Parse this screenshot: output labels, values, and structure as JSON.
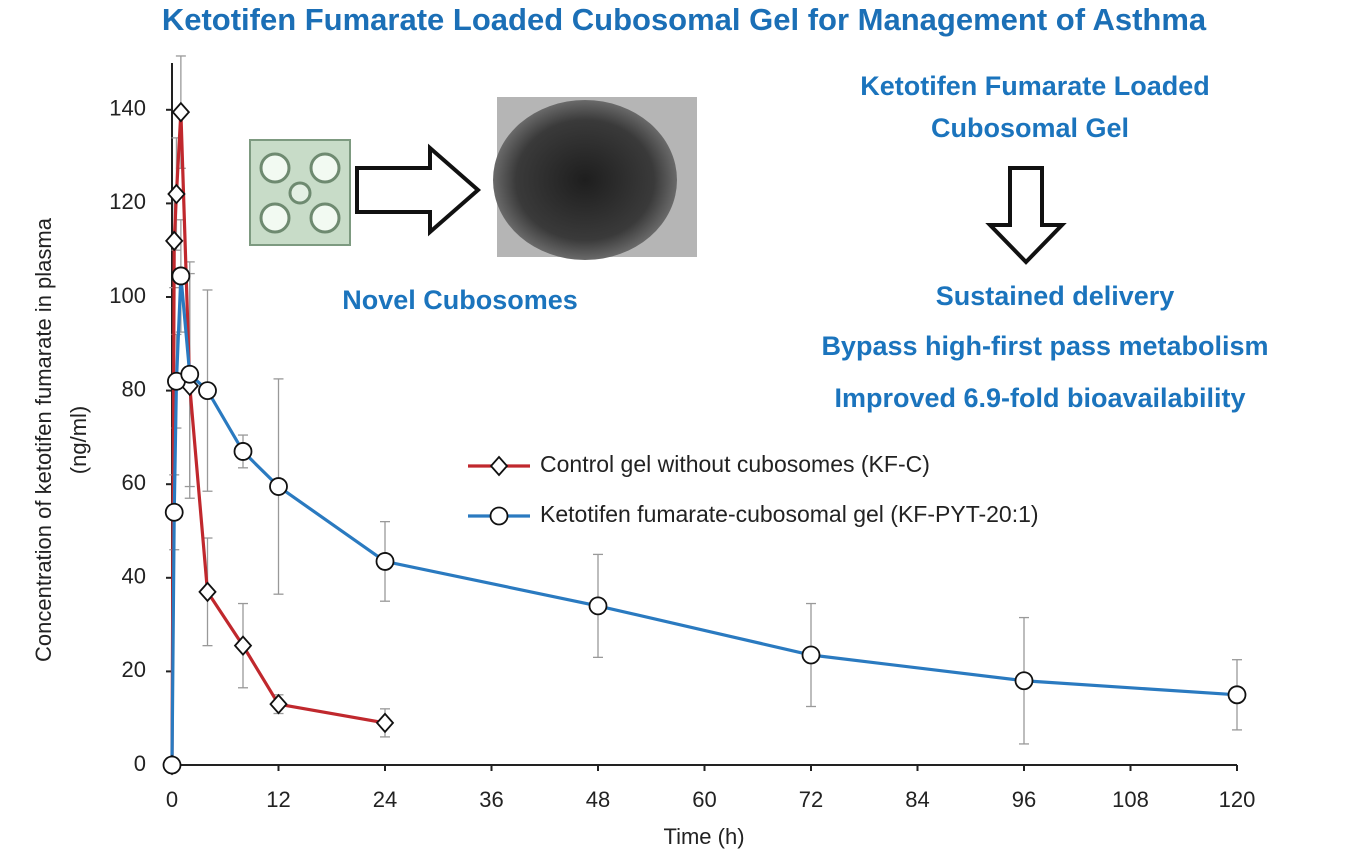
{
  "chart_data": {
    "type": "line",
    "title": "Ketotifen Fumarate Loaded Cubosomal Gel for Management of Asthma",
    "xlabel": "Time (h)",
    "ylabel": [
      "Concentration of ketotifen fumarate in plasma",
      "(ng/ml)"
    ],
    "xlim": [
      0,
      120
    ],
    "ylim": [
      0,
      150
    ],
    "xticks": [
      0,
      12,
      24,
      36,
      48,
      60,
      72,
      84,
      96,
      108,
      120
    ],
    "yticks": [
      0,
      20,
      40,
      60,
      80,
      100,
      120,
      140
    ],
    "series": [
      {
        "name": "Control gel without cubosomes (KF-C)",
        "color": "#c0282d",
        "marker": "diamond",
        "x": [
          0,
          0.25,
          0.5,
          1,
          2,
          4,
          8,
          12,
          24
        ],
        "values": [
          0,
          112,
          122,
          139.5,
          81,
          37,
          25.5,
          13,
          9
        ],
        "errors": [
          0,
          10,
          12,
          12,
          24,
          11.5,
          9,
          2,
          3
        ]
      },
      {
        "name": "Ketotifen fumarate-cubosomal gel (KF-PYT-20:1)",
        "color": "#2a7ac0",
        "marker": "circle",
        "x": [
          0,
          0.25,
          0.5,
          1,
          2,
          4,
          8,
          12,
          24,
          48,
          72,
          96,
          120
        ],
        "values": [
          0,
          54,
          82,
          104.5,
          83.5,
          80,
          67,
          59.5,
          43.5,
          34,
          23.5,
          18,
          15
        ],
        "errors": [
          0,
          8,
          10,
          12,
          24,
          21.5,
          3.5,
          23,
          8.5,
          11,
          11,
          13.5,
          7.5
        ]
      }
    ],
    "annotations": [
      "Novel Cubosomes",
      "Ketotifen Fumarate Loaded",
      "Cubosomal Gel",
      "Sustained delivery",
      "Bypass high-first pass metabolism",
      "Improved 6.9-fold bioavailability"
    ]
  }
}
